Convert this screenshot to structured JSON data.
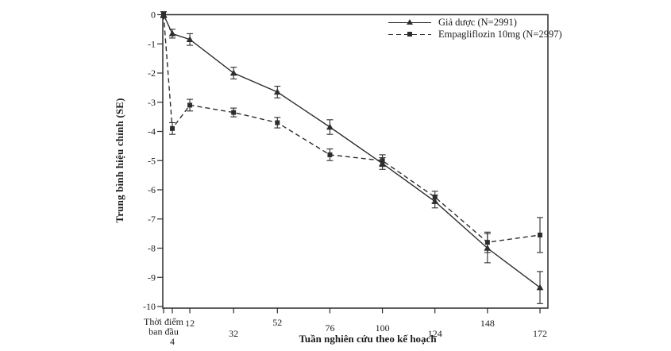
{
  "figure": {
    "background": "#ffffff",
    "line_color": "#2d2d2d",
    "text_color": "#1c1c1c"
  },
  "chart_data": {
    "type": "line",
    "title": "",
    "xlabel": "Tuần nghiên cứu theo kế hoạch",
    "ylabel": "Trung bình hiệu chỉnh (SE)",
    "ylim": [
      -10,
      0
    ],
    "x_range_weeks": [
      0,
      176
    ],
    "grid": false,
    "legend_position": "top-right-inside",
    "error_bars": "SE",
    "y_ticks": [
      0,
      -1,
      -2,
      -3,
      -4,
      -5,
      -6,
      -7,
      -8,
      -9,
      -10
    ],
    "x_ticks": [
      {
        "week": 0,
        "label": "Thời điểm\nban đầu",
        "dy": 11
      },
      {
        "week": 4,
        "label": "4",
        "dy": 36
      },
      {
        "week": 12,
        "label": "12",
        "dy": 13
      },
      {
        "week": 32,
        "label": "32",
        "dy": 26
      },
      {
        "week": 52,
        "label": "52",
        "dy": 12
      },
      {
        "week": 76,
        "label": "76",
        "dy": 19
      },
      {
        "week": 100,
        "label": "100",
        "dy": 19
      },
      {
        "week": 124,
        "label": "124",
        "dy": 26
      },
      {
        "week": 148,
        "label": "148",
        "dy": 13
      },
      {
        "week": 172,
        "label": "172",
        "dy": 26
      }
    ],
    "categories_weeks": [
      0,
      4,
      12,
      32,
      52,
      76,
      100,
      124,
      148,
      172
    ],
    "series": [
      {
        "name": "Giả dược (N=2991)",
        "line": "solid",
        "marker": "triangle",
        "values": [
          0,
          -0.65,
          -0.85,
          -2.0,
          -2.65,
          -3.85,
          -5.1,
          -6.4,
          -8.0,
          -9.35
        ],
        "se": [
          0.1,
          0.15,
          0.2,
          0.2,
          0.2,
          0.25,
          0.2,
          0.22,
          0.5,
          0.55
        ]
      },
      {
        "name": "Empagliflozin 10mg (N=2997)",
        "line": "dashed",
        "marker": "square",
        "values": [
          0,
          -3.9,
          -3.1,
          -3.35,
          -3.7,
          -4.8,
          -5.0,
          -6.25,
          -7.8,
          -7.55
        ],
        "se": [
          0.1,
          0.2,
          0.2,
          0.15,
          0.18,
          0.2,
          0.2,
          0.2,
          0.35,
          0.6
        ]
      }
    ]
  }
}
